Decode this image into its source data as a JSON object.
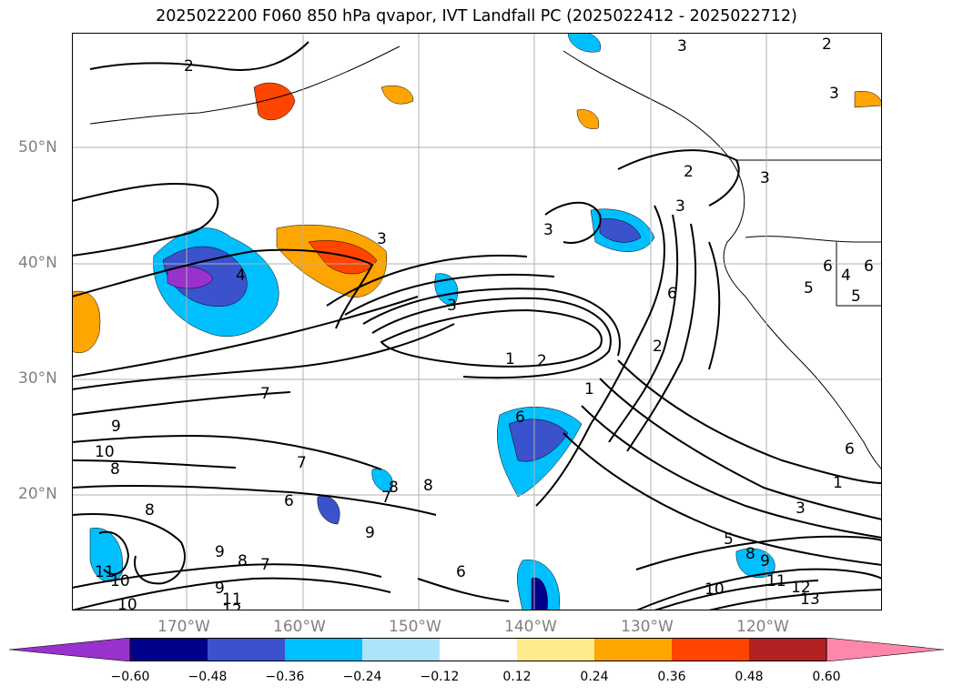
{
  "title": "2025022200 F060 850 hPa qvapor, IVT Landfall PC (2025022412 - 2025022712)",
  "lat_labels": [
    "50°N",
    "40°N",
    "30°N",
    "20°N"
  ],
  "lon_labels": [
    "170°W",
    "160°W",
    "150°W",
    "140°W",
    "130°W",
    "120°W"
  ],
  "colorbar": {
    "ticks": [
      "−0.60",
      "−0.48",
      "−0.36",
      "−0.24",
      "−0.12",
      "0.12",
      "0.24",
      "0.36",
      "0.48",
      "0.60"
    ],
    "colors": [
      "#9932CC",
      "#00008B",
      "#3A52CC",
      "#00BFFF",
      "#ADE3FB",
      "#FFFFFF",
      "#FFEB8C",
      "#FFA500",
      "#FF4500",
      "#B22222",
      "#FF88AA"
    ]
  },
  "contour_labels": [
    "2",
    "3",
    "2",
    "3",
    "3",
    "2",
    "3",
    "3",
    "4",
    "3",
    "3",
    "1",
    "2",
    "6",
    "2",
    "1",
    "6",
    "5",
    "4",
    "5",
    "6",
    "6",
    "7",
    "9",
    "10",
    "8",
    "7",
    "6",
    "8",
    "7",
    "8",
    "6",
    "8",
    "9",
    "9",
    "8",
    "7",
    "11",
    "10",
    "10",
    "9",
    "11",
    "12",
    "5",
    "8",
    "9",
    "10",
    "11",
    "12",
    "13",
    "3",
    "1",
    "6"
  ]
}
